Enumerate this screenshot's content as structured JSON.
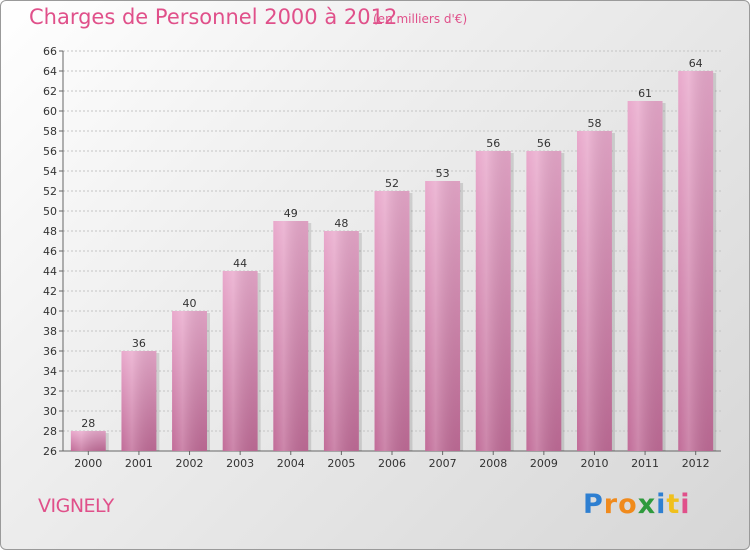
{
  "chart_data": {
    "type": "bar",
    "title": "Charges de Personnel 2000 à 2012",
    "subtitle": "(en milliers d'€)",
    "categories": [
      "2000",
      "2001",
      "2002",
      "2003",
      "2004",
      "2005",
      "2006",
      "2007",
      "2008",
      "2009",
      "2010",
      "2011",
      "2012"
    ],
    "values": [
      28,
      36,
      40,
      44,
      49,
      48,
      52,
      53,
      56,
      56,
      58,
      61,
      64
    ],
    "ylim": [
      26,
      66
    ],
    "ytick_step": 2,
    "xlabel": "",
    "ylabel": "",
    "grid": true,
    "bar_color": "#d88db5",
    "bar_color_top": "#e9a9cc",
    "bar_color_bottom": "#c16c98"
  },
  "location": "VIGNELY",
  "logo": {
    "letters": [
      "P",
      "r",
      "o",
      "x",
      "i",
      "t",
      "i"
    ],
    "colors": [
      "#2e7fd1",
      "#f08a1c",
      "#f08a1c",
      "#2e9a3d",
      "#2e7fd1",
      "#f0c01c",
      "#e0508a"
    ]
  }
}
